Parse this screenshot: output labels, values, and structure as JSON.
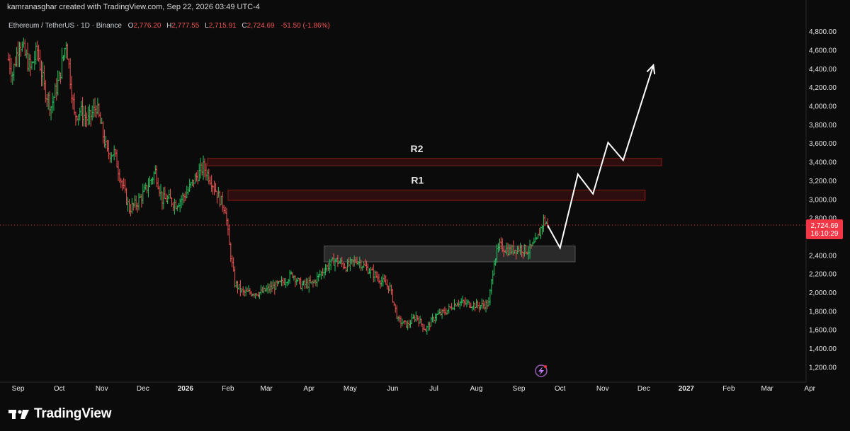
{
  "attribution": "kamranasghar created with TradingView.com, Sep 22, 2026 03:49 UTC-4",
  "symbol_line": "Ethereum / TetherUS · 1D · Binance",
  "ohlc": {
    "o_label": "O",
    "o_value": "2,776.20",
    "h_label": "H",
    "h_value": "2,777.55",
    "l_label": "L",
    "l_value": "2,715.91",
    "c_label": "C",
    "c_value": "2,724.69",
    "change": "-51.50 (-1.86%)"
  },
  "price_tag": {
    "price": "2,724.69",
    "countdown": "16:10:29",
    "color": "#f23645"
  },
  "brand": {
    "name": "TradingView",
    "logo_icon": "tradingview-logo-icon"
  },
  "colors": {
    "up": "#26a69a",
    "up_vivid": "#22c55e",
    "down": "#ef5350",
    "zone_red": "#8b1a1a",
    "zone_gray": "#3a3a3a",
    "projection": "#ffffff",
    "background": "#0b0b0b"
  },
  "chart_data": {
    "type": "candlestick",
    "title": "Ethereum / TetherUS · 1D · Binance",
    "xlabel": "",
    "ylabel": "",
    "y_ticks": [
      "4,800.00",
      "4,600.00",
      "4,400.00",
      "4,200.00",
      "4,000.00",
      "3,800.00",
      "3,600.00",
      "3,400.00",
      "3,200.00",
      "3,000.00",
      "2,800.00",
      "2,400.00",
      "2,200.00",
      "2,000.00",
      "1,800.00",
      "1,600.00",
      "1,400.00",
      "1,200.00"
    ],
    "x_ticks": [
      "Sep",
      "Oct",
      "Nov",
      "Dec",
      "2026",
      "Feb",
      "Mar",
      "Apr",
      "May",
      "Jun",
      "Jul",
      "Aug",
      "Sep",
      "Oct",
      "Nov",
      "Dec",
      "2027",
      "Feb",
      "Mar",
      "Apr"
    ],
    "ylim": [
      1100,
      4950
    ],
    "grid": false,
    "price_path": [
      [
        "2025-08-25",
        4500
      ],
      [
        "2025-08-28",
        4350
      ],
      [
        "2025-09-02",
        4700
      ],
      [
        "2025-09-10",
        4400
      ],
      [
        "2025-09-15",
        4600
      ],
      [
        "2025-09-20",
        4200
      ],
      [
        "2025-09-25",
        4000
      ],
      [
        "2025-10-01",
        4300
      ],
      [
        "2025-10-06",
        4700
      ],
      [
        "2025-10-12",
        3900
      ],
      [
        "2025-10-16",
        3950
      ],
      [
        "2025-10-22",
        3850
      ],
      [
        "2025-10-28",
        4000
      ],
      [
        "2025-11-05",
        3500
      ],
      [
        "2025-11-10",
        3500
      ],
      [
        "2025-11-16",
        3150
      ],
      [
        "2025-11-21",
        2900
      ],
      [
        "2025-11-26",
        2950
      ],
      [
        "2025-12-03",
        3100
      ],
      [
        "2025-12-10",
        3300
      ],
      [
        "2025-12-15",
        3000
      ],
      [
        "2025-12-20",
        3000
      ],
      [
        "2025-12-25",
        2950
      ],
      [
        "2026-01-01",
        3050
      ],
      [
        "2026-01-07",
        3200
      ],
      [
        "2026-01-14",
        3350
      ],
      [
        "2026-01-20",
        3200
      ],
      [
        "2026-01-26",
        3000
      ],
      [
        "2026-01-30",
        2900
      ],
      [
        "2026-02-02",
        2500
      ],
      [
        "2026-02-06",
        2100
      ],
      [
        "2026-02-12",
        2000
      ],
      [
        "2026-02-18",
        2000
      ],
      [
        "2026-02-25",
        2000
      ],
      [
        "2026-03-04",
        2050
      ],
      [
        "2026-03-12",
        2100
      ],
      [
        "2026-03-20",
        2200
      ],
      [
        "2026-03-26",
        2080
      ],
      [
        "2026-04-04",
        2100
      ],
      [
        "2026-04-12",
        2250
      ],
      [
        "2026-04-20",
        2350
      ],
      [
        "2026-04-28",
        2280
      ],
      [
        "2026-05-06",
        2350
      ],
      [
        "2026-05-14",
        2250
      ],
      [
        "2026-05-22",
        2150
      ],
      [
        "2026-05-30",
        2050
      ],
      [
        "2026-06-05",
        1700
      ],
      [
        "2026-06-12",
        1650
      ],
      [
        "2026-06-18",
        1750
      ],
      [
        "2026-06-25",
        1600
      ],
      [
        "2026-07-02",
        1750
      ],
      [
        "2026-07-10",
        1800
      ],
      [
        "2026-07-18",
        1900
      ],
      [
        "2026-07-26",
        1880
      ],
      [
        "2026-08-03",
        1860
      ],
      [
        "2026-08-10",
        1880
      ],
      [
        "2026-08-14",
        2350
      ],
      [
        "2026-08-18",
        2500
      ],
      [
        "2026-08-25",
        2450
      ],
      [
        "2026-09-01",
        2480
      ],
      [
        "2026-09-08",
        2450
      ],
      [
        "2026-09-14",
        2550
      ],
      [
        "2026-09-19",
        2780
      ],
      [
        "2026-09-22",
        2724.69
      ]
    ],
    "zones": [
      {
        "label": "R2",
        "from": "2026-01-17",
        "to": "2026-12-14",
        "low": 3360,
        "high": 3440
      },
      {
        "label": "R1",
        "from": "2026-02-01",
        "to": "2026-12-02",
        "low": 2990,
        "high": 3100
      },
      {
        "label": "",
        "from": "2026-04-12",
        "to": "2026-10-12",
        "low": 2330,
        "high": 2500
      }
    ],
    "projection": [
      [
        "2026-09-22",
        2720
      ],
      [
        "2026-10-01",
        2480
      ],
      [
        "2026-10-14",
        3270
      ],
      [
        "2026-10-25",
        3060
      ],
      [
        "2026-11-05",
        3610
      ],
      [
        "2026-11-16",
        3420
      ],
      [
        "2026-12-08",
        4440
      ]
    ],
    "current_price": 2724.69,
    "annotations": [
      "R2",
      "R1"
    ]
  }
}
